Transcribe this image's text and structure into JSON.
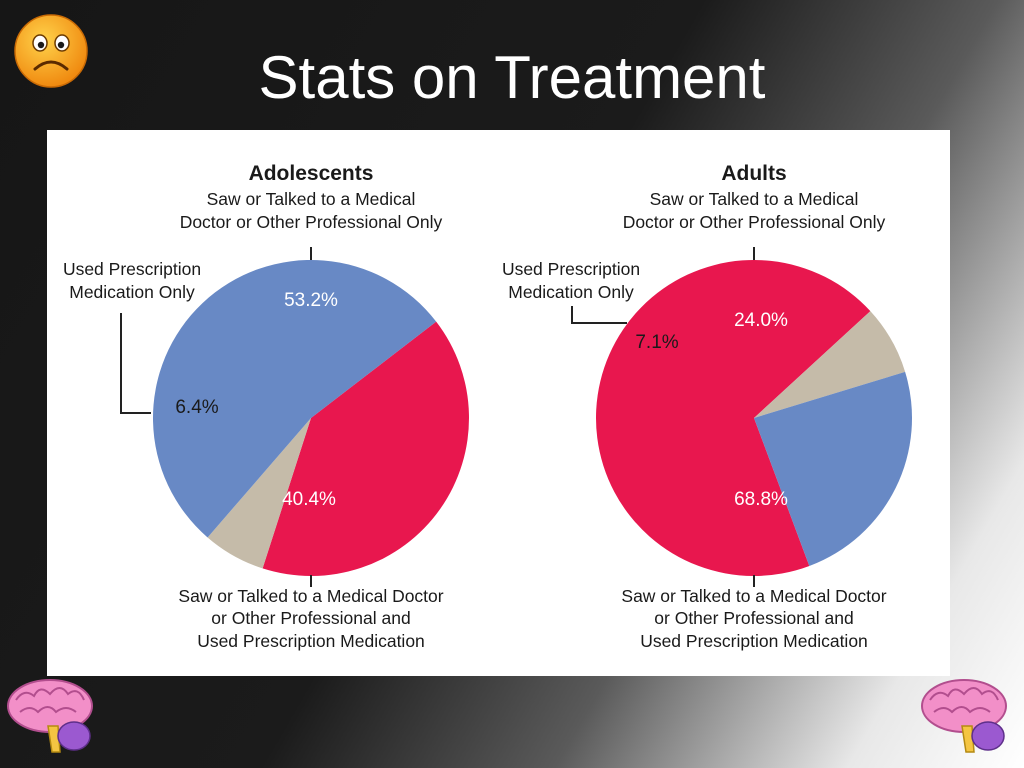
{
  "slide": {
    "title": "Stats on Treatment",
    "icons": [
      "sad-face-icon",
      "brain-icon",
      "brain-icon"
    ]
  },
  "chart_data": [
    {
      "type": "pie",
      "title": "Adolescents",
      "categories": [
        "Saw or Talked to a Medical Doctor or Other Professional Only",
        "Saw or Talked to a Medical Doctor or Other Professional and Used Prescription Medication",
        "Used Prescription Medication Only"
      ],
      "values": [
        53.2,
        40.4,
        6.4
      ],
      "value_labels": [
        "53.2%",
        "40.4%",
        "6.4%"
      ],
      "colors": [
        "#6889c5",
        "#e8174e",
        "#c5bba9"
      ],
      "label_lines": {
        "top": [
          "Saw or Talked to a Medical",
          "Doctor or Other Professional Only"
        ],
        "side": [
          "Used Prescription",
          "Medication Only"
        ],
        "bottom": [
          "Saw or Talked to a Medical Doctor",
          "or Other Professional and",
          "Used Prescription Medication"
        ]
      }
    },
    {
      "type": "pie",
      "title": "Adults",
      "categories": [
        "Saw or Talked to a Medical Doctor or Other Professional Only",
        "Saw or Talked to a Medical Doctor or Other Professional and Used Prescription Medication",
        "Used Prescription Medication Only"
      ],
      "values": [
        24.0,
        68.8,
        7.1
      ],
      "value_labels": [
        "24.0%",
        "68.8%",
        "7.1%"
      ],
      "colors": [
        "#6889c5",
        "#e8174e",
        "#c5bba9"
      ],
      "label_lines": {
        "top": [
          "Saw or Talked to a Medical",
          "Doctor or Other Professional Only"
        ],
        "side": [
          "Used Prescription",
          "Medication Only"
        ],
        "bottom": [
          "Saw or Talked to a Medical Doctor",
          "or Other Professional and",
          "Used Prescription Medication"
        ]
      }
    }
  ]
}
